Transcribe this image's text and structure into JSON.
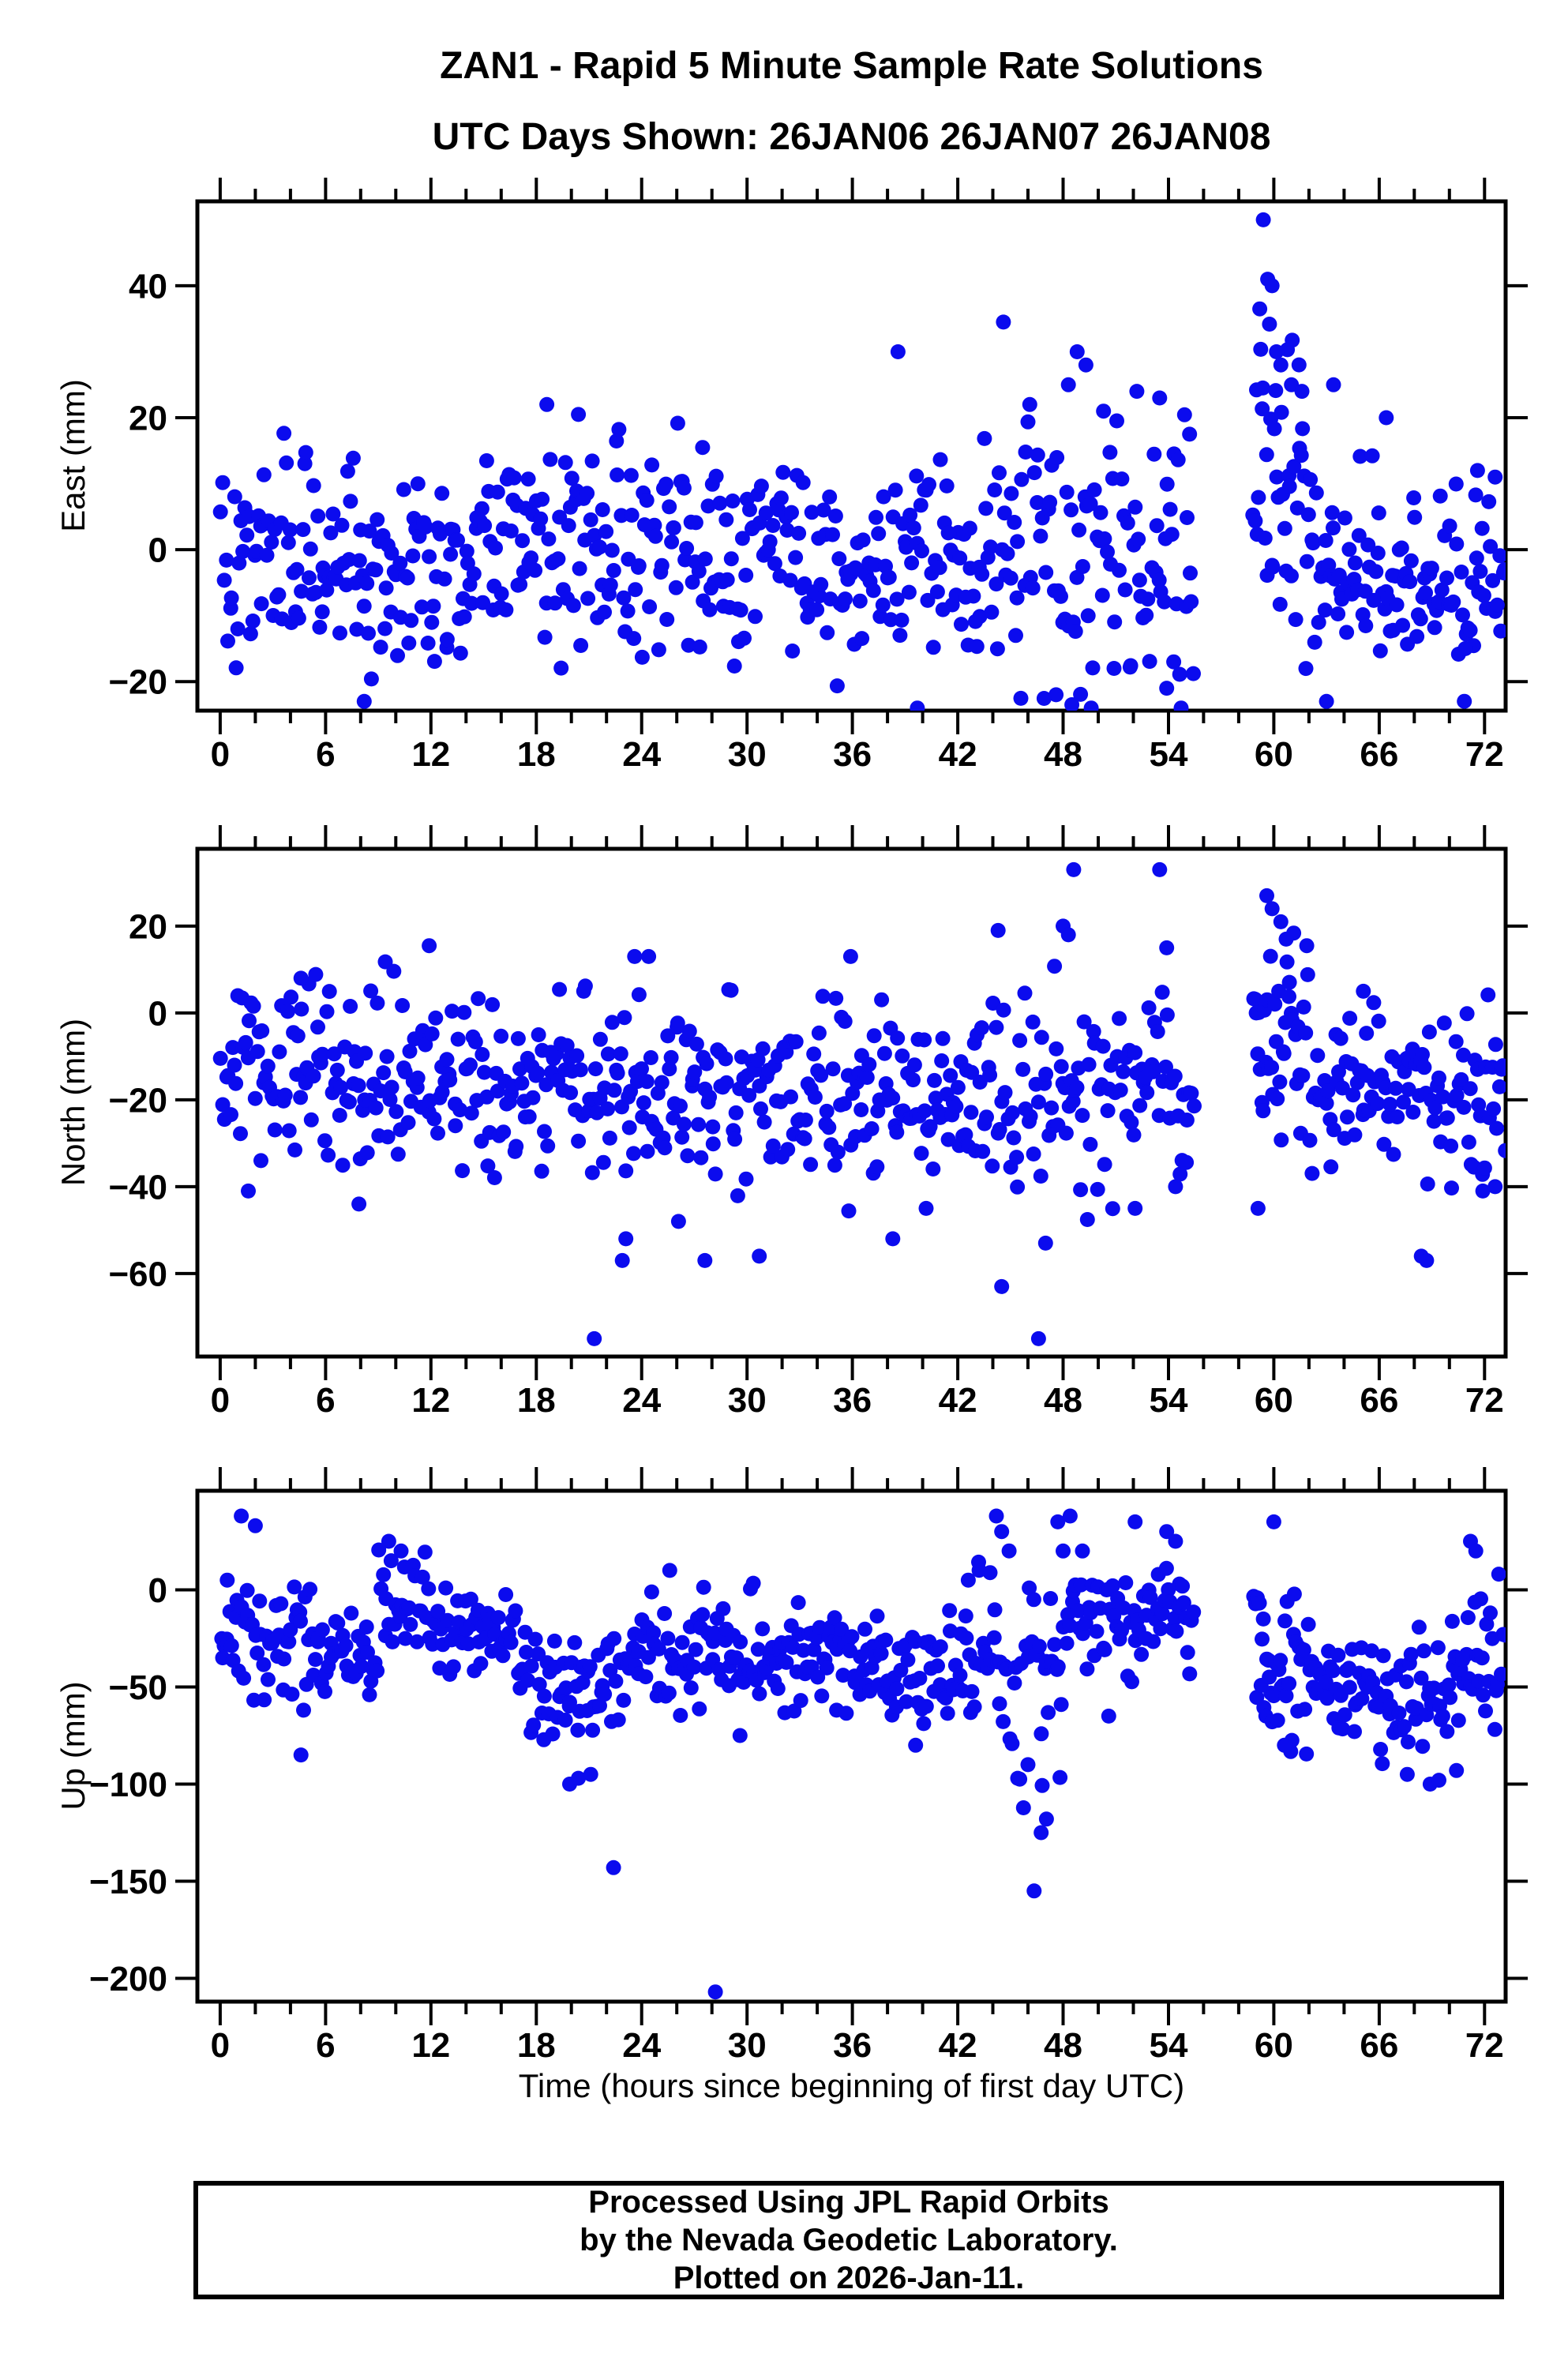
{
  "title": "ZAN1 - Rapid 5 Minute Sample Rate Solutions",
  "subtitle": "UTC Days Shown:  26JAN06 26JAN07 26JAN08",
  "footer": {
    "line1": "Processed Using JPL Rapid Orbits",
    "line2": "by the Nevada Geodetic Laboratory.",
    "line3": "Plotted on 2026-Jan-11."
  },
  "marker": {
    "color": "#0b0bee",
    "radius": 9.5
  },
  "frame_color": "#000000",
  "xaxis": {
    "title": "Time (hours since beginning of first day UTC)",
    "ticks": [
      0,
      6,
      12,
      18,
      24,
      30,
      36,
      42,
      48,
      54,
      60,
      66,
      72
    ],
    "minor_step": 2,
    "range": [
      -1.3,
      73.2
    ]
  },
  "chart_data": [
    {
      "type": "scatter",
      "name": "east",
      "ylabel": "East (mm)",
      "ylim": [
        -24.4,
        52.8
      ],
      "yticks": [
        40,
        20,
        0,
        -20
      ],
      "clamp": [
        -24,
        52
      ],
      "seed": 101,
      "cloud": [
        [
          0,
          18,
          170,
          -1,
          7.5
        ],
        [
          18,
          30,
          115,
          0,
          8.5
        ],
        [
          30,
          44,
          130,
          -2,
          8
        ],
        [
          44,
          50,
          52,
          -1,
          11
        ],
        [
          50,
          55.5,
          48,
          0,
          10
        ],
        [
          58.8,
          62,
          40,
          8,
          12
        ],
        [
          62,
          73.2,
          108,
          -4,
          7
        ]
      ],
      "points": [
        [
          8.2,
          -23
        ],
        [
          18.6,
          22
        ],
        [
          20.4,
          20.5
        ],
        [
          38.6,
          30
        ],
        [
          39.7,
          -24
        ],
        [
          44.6,
          34.5
        ],
        [
          45.3,
          -13
        ],
        [
          46.1,
          22
        ],
        [
          47.6,
          -22
        ],
        [
          48.3,
          25
        ],
        [
          48.5,
          -23.5
        ],
        [
          48.8,
          30
        ],
        [
          49.3,
          28
        ],
        [
          49.6,
          -24
        ],
        [
          50.3,
          21
        ],
        [
          50.9,
          -18
        ],
        [
          52.2,
          24
        ],
        [
          53.5,
          23
        ],
        [
          53.9,
          -21
        ],
        [
          54.3,
          -17
        ],
        [
          55.2,
          17.5
        ],
        [
          59.2,
          36.5
        ],
        [
          59.4,
          50
        ],
        [
          59.65,
          41
        ],
        [
          59.9,
          40
        ],
        [
          60.15,
          30
        ],
        [
          60.4,
          28
        ],
        [
          61.0,
          25
        ],
        [
          61.6,
          24
        ],
        [
          63.0,
          -23
        ],
        [
          63.4,
          25
        ],
        [
          66.4,
          20
        ],
        [
          70.9,
          -15
        ],
        [
          71.6,
          12
        ],
        [
          72.6,
          11
        ]
      ]
    },
    {
      "type": "scatter",
      "name": "north",
      "ylabel": "North (mm)",
      "ylim": [
        -79.1,
        37.8
      ],
      "yticks": [
        20,
        0,
        -20,
        -40,
        -60
      ],
      "clamp": [
        -78,
        37
      ],
      "seed": 202,
      "cloud": [
        [
          0,
          12,
          112,
          -14,
          10
        ],
        [
          12,
          24,
          112,
          -16,
          10
        ],
        [
          24,
          36,
          112,
          -18,
          10
        ],
        [
          36,
          44,
          78,
          -18,
          9
        ],
        [
          44,
          50,
          52,
          -15,
          13
        ],
        [
          50,
          55.5,
          48,
          -15,
          11
        ],
        [
          58.8,
          62,
          40,
          -4,
          11
        ],
        [
          62,
          73.2,
          108,
          -18,
          8.5
        ]
      ],
      "points": [
        [
          4.6,
          8
        ],
        [
          1.6,
          -41
        ],
        [
          7.9,
          -44
        ],
        [
          11.9,
          15.5
        ],
        [
          21.3,
          -75
        ],
        [
          22.9,
          -57
        ],
        [
          23.1,
          -52
        ],
        [
          23.6,
          13
        ],
        [
          24.4,
          13
        ],
        [
          26.1,
          -48
        ],
        [
          27.6,
          -57
        ],
        [
          30.7,
          -56
        ],
        [
          35.9,
          13
        ],
        [
          38.3,
          -52
        ],
        [
          40.2,
          -45
        ],
        [
          44.3,
          19
        ],
        [
          44.5,
          -63
        ],
        [
          46.6,
          -75
        ],
        [
          47.0,
          -53
        ],
        [
          48.0,
          20
        ],
        [
          48.3,
          18
        ],
        [
          48.6,
          33
        ],
        [
          52.1,
          -45
        ],
        [
          53.5,
          33
        ],
        [
          53.9,
          15
        ],
        [
          54.4,
          -40
        ],
        [
          59.1,
          -45
        ],
        [
          59.6,
          27
        ],
        [
          59.9,
          24
        ],
        [
          60.4,
          21
        ],
        [
          60.7,
          17
        ],
        [
          65.1,
          5
        ],
        [
          68.4,
          -56
        ],
        [
          68.7,
          -57
        ],
        [
          71.9,
          -41
        ],
        [
          72.6,
          -40
        ]
      ]
    },
    {
      "type": "scatter",
      "name": "up",
      "ylabel": "Up (mm)",
      "ylim": [
        -212,
        51
      ],
      "yticks": [
        0,
        -50,
        -100,
        -150,
        -200
      ],
      "clamp": [
        -210,
        50
      ],
      "seed": 303,
      "cloud": [
        [
          0,
          6,
          58,
          -30,
          15
        ],
        [
          6,
          9,
          28,
          -30,
          11
        ],
        [
          9,
          12,
          28,
          -10,
          12
        ],
        [
          12,
          17,
          48,
          -22,
          10
        ],
        [
          17,
          23,
          58,
          -52,
          17
        ],
        [
          23,
          27,
          38,
          -33,
          16
        ],
        [
          27,
          31,
          38,
          -30,
          14
        ],
        [
          31,
          38,
          68,
          -35,
          12
        ],
        [
          38,
          43,
          48,
          -40,
          14
        ],
        [
          43,
          48,
          46,
          -42,
          28
        ],
        [
          48,
          55.5,
          68,
          -15,
          15
        ],
        [
          58.8,
          62,
          38,
          -40,
          20
        ],
        [
          62,
          66,
          40,
          -48,
          11
        ],
        [
          66,
          70,
          38,
          -55,
          18
        ],
        [
          70,
          73.2,
          32,
          -35,
          16
        ]
      ],
      "points": [
        [
          0.4,
          5
        ],
        [
          1.2,
          38
        ],
        [
          2.0,
          33
        ],
        [
          4.6,
          -85
        ],
        [
          9.6,
          25
        ],
        [
          10.3,
          20
        ],
        [
          19.9,
          -100
        ],
        [
          20.4,
          -97
        ],
        [
          21.1,
          -95
        ],
        [
          22.4,
          -143
        ],
        [
          25.6,
          10
        ],
        [
          28.2,
          -207
        ],
        [
          29.6,
          -75
        ],
        [
          39.6,
          -80
        ],
        [
          42.6,
          5
        ],
        [
          44.2,
          38
        ],
        [
          44.5,
          30
        ],
        [
          46.0,
          -90
        ],
        [
          46.35,
          -155
        ],
        [
          46.75,
          -125
        ],
        [
          47.05,
          -118
        ],
        [
          47.7,
          35
        ],
        [
          48.0,
          20
        ],
        [
          48.4,
          38
        ],
        [
          49.1,
          20
        ],
        [
          50.6,
          -65
        ],
        [
          52.1,
          35
        ],
        [
          53.9,
          30
        ],
        [
          54.4,
          25
        ],
        [
          59.4,
          -15
        ],
        [
          60.0,
          35
        ],
        [
          60.6,
          -80
        ],
        [
          67.6,
          -95
        ],
        [
          68.9,
          -100
        ],
        [
          69.4,
          -98
        ],
        [
          70.4,
          -93
        ],
        [
          71.2,
          25
        ],
        [
          71.5,
          20
        ]
      ]
    }
  ]
}
